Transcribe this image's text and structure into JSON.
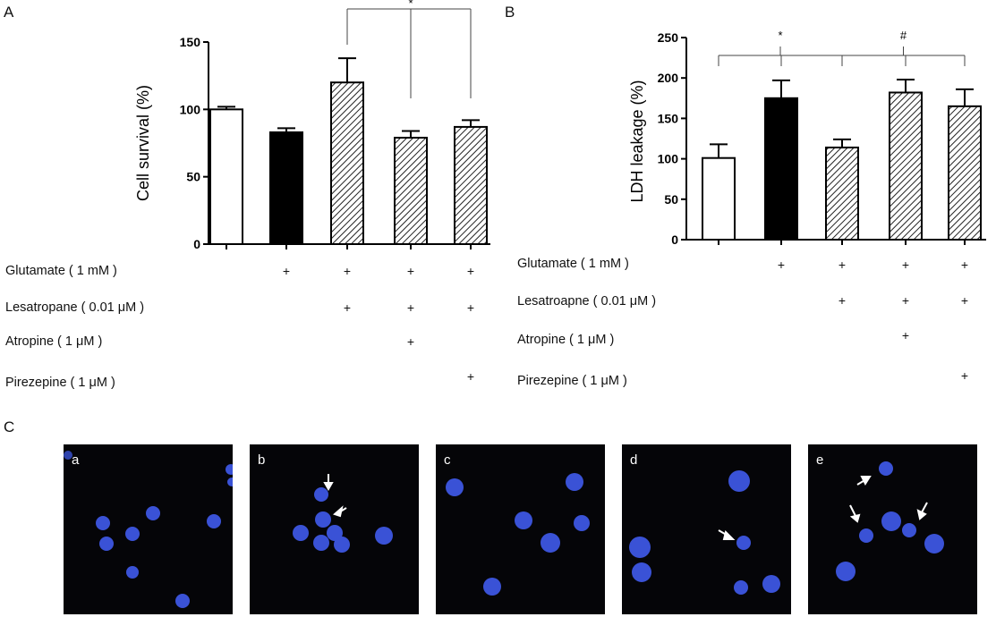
{
  "panels": {
    "A": "A",
    "B": "B",
    "C": "C"
  },
  "chart_data": [
    {
      "type": "bar",
      "panel": "A",
      "ylabel": "Cell survival (%)",
      "ylim": [
        0,
        150
      ],
      "yticks": [
        "0",
        "50",
        "100",
        "150"
      ],
      "values": [
        100,
        83,
        120,
        79,
        87
      ],
      "errors": [
        2,
        3,
        18,
        5,
        5
      ],
      "fills": [
        "white",
        "black",
        "hatch",
        "hatch",
        "hatch"
      ],
      "significance": [
        {
          "mark": "*",
          "from": 2,
          "to": [
            3,
            4
          ]
        }
      ],
      "treatments": [
        {
          "label": "Glutamate ( 1 mM )",
          "plus": [
            false,
            true,
            true,
            true,
            true
          ]
        },
        {
          "label": "Lesatropane ( 0.01 μM )",
          "plus": [
            false,
            false,
            true,
            true,
            true
          ]
        },
        {
          "label": "Atropine ( 1 μM )",
          "plus": [
            false,
            false,
            false,
            true,
            false
          ]
        },
        {
          "label": "Pirezepine ( 1 μM )",
          "plus": [
            false,
            false,
            false,
            false,
            true
          ]
        }
      ]
    },
    {
      "type": "bar",
      "panel": "B",
      "ylabel": "LDH leakage (%)",
      "ylim": [
        0,
        250
      ],
      "yticks": [
        "0",
        "50",
        "100",
        "150",
        "200",
        "250"
      ],
      "values": [
        101,
        175,
        114,
        182,
        165
      ],
      "errors": [
        17,
        22,
        10,
        16,
        21
      ],
      "fills": [
        "white",
        "black",
        "hatch",
        "hatch",
        "hatch"
      ],
      "significance": [
        {
          "mark": "*",
          "from": 0,
          "to": [
            1,
            2
          ]
        },
        {
          "mark": "#",
          "from": 2,
          "to": [
            3,
            4
          ]
        }
      ],
      "treatments": [
        {
          "label": "Glutamate ( 1 mM )",
          "plus": [
            false,
            true,
            true,
            true,
            true
          ]
        },
        {
          "label": "Lesatroapne ( 0.01 μM )",
          "plus": [
            false,
            false,
            true,
            true,
            true
          ]
        },
        {
          "label": "Atropine ( 1 μM )",
          "plus": [
            false,
            false,
            false,
            true,
            false
          ]
        },
        {
          "label": "Pirezepine ( 1 μM )",
          "plus": [
            false,
            false,
            false,
            false,
            true
          ]
        }
      ]
    }
  ],
  "micrographs": [
    {
      "label": "a"
    },
    {
      "label": "b"
    },
    {
      "label": "c"
    },
    {
      "label": "d"
    },
    {
      "label": "e"
    }
  ],
  "colors": {
    "nucleus": "#3a52d6",
    "nucleus_core": "#5a72ff",
    "background": "#050508",
    "arrow": "#ffffff"
  }
}
